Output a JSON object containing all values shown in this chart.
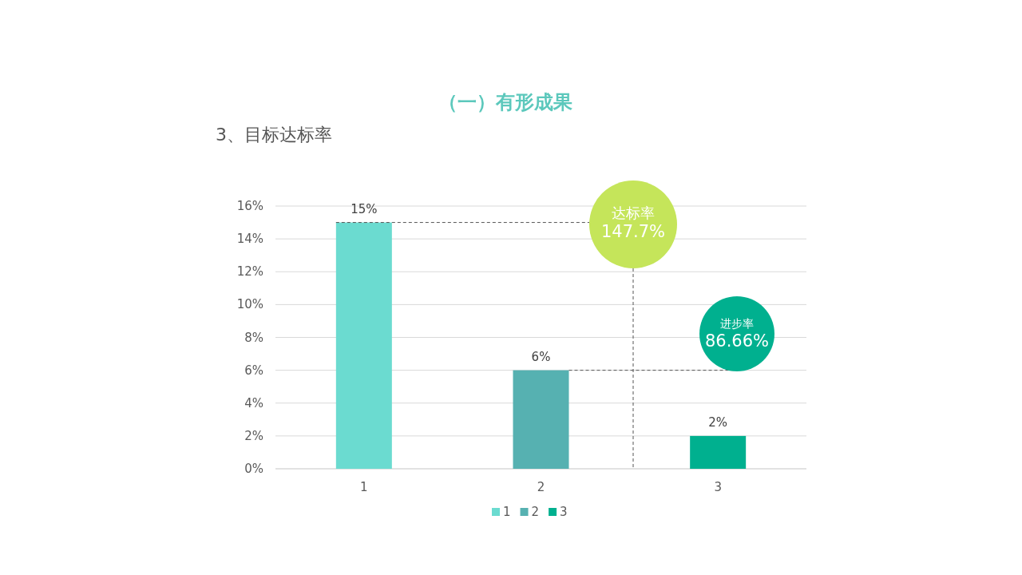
{
  "chart_data": {
    "type": "bar",
    "title": "（一）有形成果",
    "subtitle": "3、目标达标率",
    "categories": [
      "1",
      "2",
      "3"
    ],
    "stacked": true,
    "series": [
      {
        "name": "1",
        "color": "#6bdbd0",
        "values": [
          15,
          null,
          null
        ],
        "value_labels": [
          "15%",
          null,
          null
        ]
      },
      {
        "name": "2",
        "color": "#56b1b1",
        "values": [
          null,
          6,
          null
        ],
        "value_labels": [
          null,
          "6%",
          null
        ]
      },
      {
        "name": "3",
        "color": "#00b08f",
        "values": [
          null,
          null,
          2
        ],
        "value_labels": [
          null,
          null,
          "2%"
        ]
      }
    ],
    "ylim": [
      0,
      16
    ],
    "yticks": [
      {
        "value": 0,
        "label": "0%"
      },
      {
        "value": 2,
        "label": "2%"
      },
      {
        "value": 4,
        "label": "4%"
      },
      {
        "value": 6,
        "label": "6%"
      },
      {
        "value": 8,
        "label": "8%"
      },
      {
        "value": 10,
        "label": "10%"
      },
      {
        "value": 12,
        "label": "12%"
      },
      {
        "value": 14,
        "label": "14%"
      },
      {
        "value": 16,
        "label": "16%"
      }
    ],
    "grid": "y",
    "legend": "bottom",
    "ref_lines": [
      {
        "axis": "y",
        "value": 15,
        "line_style": "dashed",
        "color": "#555555"
      },
      {
        "axis": "y",
        "value": 6,
        "line_style": "dashed",
        "color": "#555555"
      }
    ],
    "annotations": [
      "达标率\n147.7%",
      "进步率\n86.66%"
    ]
  }
}
